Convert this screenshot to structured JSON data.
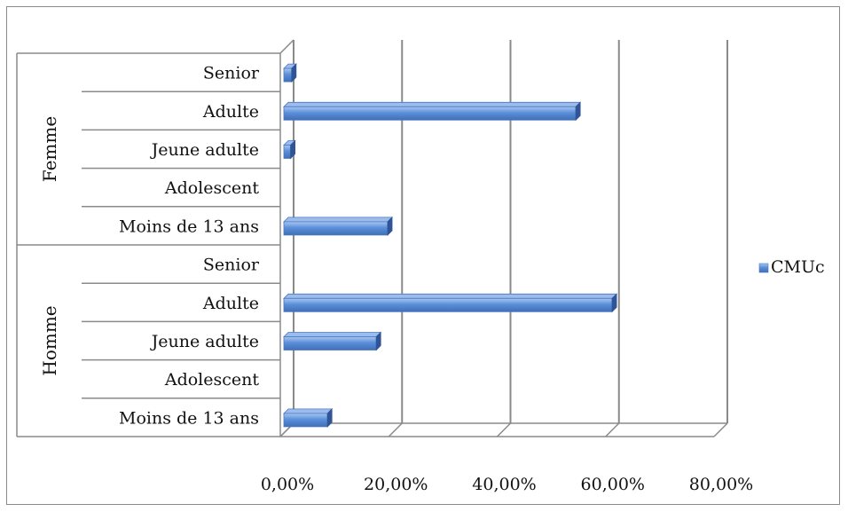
{
  "chart_data": {
    "type": "bar",
    "orientation": "horizontal",
    "style": "3d",
    "groups": [
      {
        "name": "Femme",
        "categories": [
          "Senior",
          "Adulte",
          "Jeune adulte",
          "Adolescent",
          "Moins de 13 ans"
        ],
        "values": [
          0.021,
          0.545,
          0.019,
          0.0,
          0.198
        ]
      },
      {
        "name": "Homme",
        "categories": [
          "Senior",
          "Adulte",
          "Jeune adulte",
          "Adolescent",
          "Moins de 13 ans"
        ],
        "values": [
          0.0,
          0.612,
          0.177,
          0.0,
          0.087
        ]
      }
    ],
    "series": [
      {
        "name": "CMUc",
        "color": "#5b8fd9"
      }
    ],
    "xaxis": {
      "ticks": [
        0,
        0.2,
        0.4,
        0.6,
        0.8
      ],
      "tick_labels": [
        "0,00%",
        "20,00%",
        "40,00%",
        "60,00%",
        "80,00%"
      ],
      "range": [
        0,
        0.8
      ]
    },
    "grid": true,
    "legend": {
      "position": "right"
    },
    "title": "",
    "xlabel": "",
    "ylabel": ""
  }
}
